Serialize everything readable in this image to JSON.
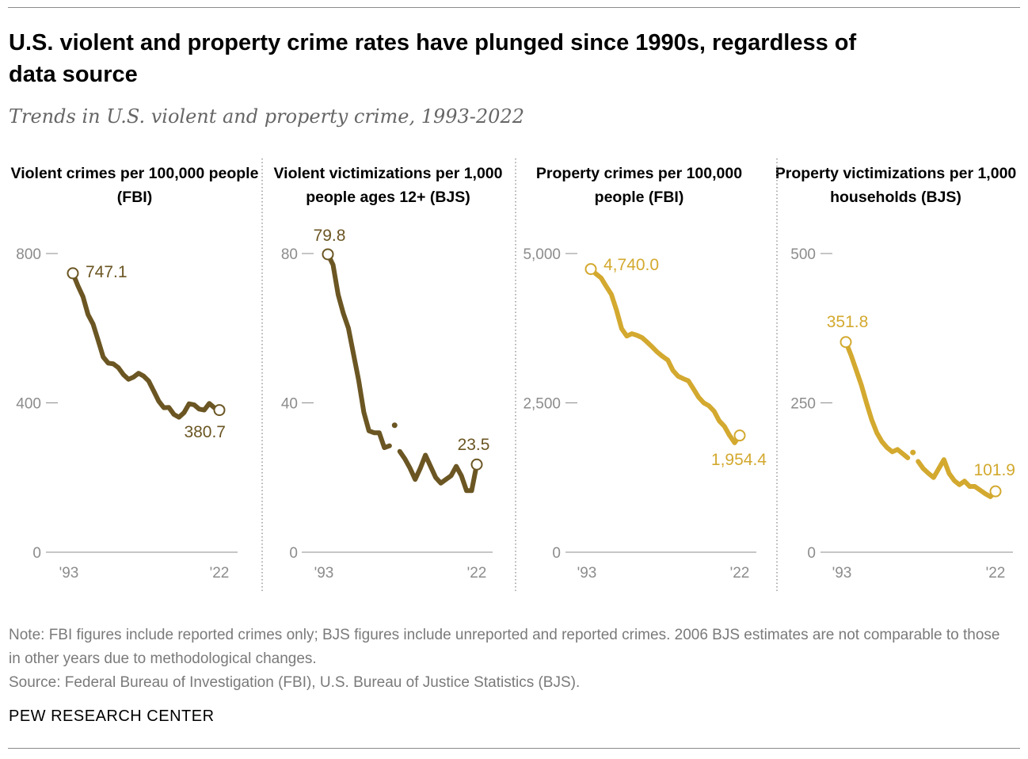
{
  "title": "U.S. violent and property crime rates have plunged since 1990s, regardless of data source",
  "subtitle": "Trends in U.S. violent and property crime, 1993-2022",
  "note": "Note: FBI figures include reported crimes only; BJS figures include unreported and reported crimes. 2006 BJS estimates are not comparable to those in other years due to methodological changes.",
  "source": "Source: Federal Bureau of Investigation (FBI), U.S. Bureau of Justice Statistics (BJS).",
  "logo": "PEW RESEARCH CENTER",
  "colors": {
    "violent": "#6b5623",
    "property": "#d3a92f",
    "axis": "#8c8c8c"
  },
  "chart_data": [
    {
      "type": "line",
      "title": "Violent crimes per 100,000 people (FBI)",
      "color": "violent",
      "x": [
        1993,
        1994,
        1995,
        1996,
        1997,
        1998,
        1999,
        2000,
        2001,
        2002,
        2003,
        2004,
        2005,
        2006,
        2007,
        2008,
        2009,
        2010,
        2011,
        2012,
        2013,
        2014,
        2015,
        2016,
        2017,
        2018,
        2019,
        2020,
        2021,
        2022
      ],
      "values": [
        747.1,
        713.6,
        684.5,
        636.6,
        611.0,
        567.6,
        523.0,
        506.5,
        504.5,
        494.4,
        475.8,
        463.2,
        469.0,
        479.3,
        471.8,
        458.6,
        431.9,
        404.5,
        387.1,
        387.8,
        369.1,
        361.6,
        373.7,
        397.5,
        394.9,
        383.4,
        380.8,
        398.5,
        387.0,
        380.7
      ],
      "ylim": [
        0,
        800
      ],
      "yticks": [
        0,
        400,
        800
      ],
      "ytick_labels": [
        "0",
        "400",
        "800"
      ],
      "xtick_labels": [
        "'93",
        "'22"
      ],
      "labels": {
        "first": "747.1",
        "last": "380.7"
      }
    },
    {
      "type": "line",
      "title": "Violent victimizations per 1,000 people ages 12+ (BJS)",
      "color": "violent",
      "x": [
        1993,
        1994,
        1995,
        1996,
        1997,
        1998,
        1999,
        2000,
        2001,
        2002,
        2003,
        2004,
        2005,
        2006,
        2007,
        2008,
        2009,
        2010,
        2011,
        2012,
        2013,
        2014,
        2015,
        2016,
        2017,
        2018,
        2019,
        2020,
        2021,
        2022
      ],
      "values": [
        79.8,
        77.0,
        69.0,
        64.0,
        60.0,
        53.0,
        46.0,
        37.5,
        32.5,
        32.0,
        32.0,
        28.0,
        28.5,
        34.0,
        27.0,
        25.0,
        22.5,
        19.5,
        22.5,
        26.0,
        23.0,
        20.0,
        18.5,
        19.5,
        20.5,
        23.0,
        20.5,
        16.5,
        16.5,
        23.5
      ],
      "gap_year": 2006,
      "ylim": [
        0,
        80
      ],
      "yticks": [
        0,
        40,
        80
      ],
      "ytick_labels": [
        "0",
        "40",
        "80"
      ],
      "xtick_labels": [
        "'93",
        "'22"
      ],
      "labels": {
        "first": "79.8",
        "last": "23.5"
      }
    },
    {
      "type": "line",
      "title": "Property crimes per 100,000 people (FBI)",
      "color": "property",
      "x": [
        1993,
        1994,
        1995,
        1996,
        1997,
        1998,
        1999,
        2000,
        2001,
        2002,
        2003,
        2004,
        2005,
        2006,
        2007,
        2008,
        2009,
        2010,
        2011,
        2012,
        2013,
        2014,
        2015,
        2016,
        2017,
        2018,
        2019,
        2020,
        2021,
        2022
      ],
      "values": [
        4740.0,
        4660,
        4591,
        4451,
        4316,
        4052,
        3743,
        3618,
        3658,
        3631,
        3591,
        3514,
        3432,
        3346,
        3276,
        3215,
        3042,
        2946,
        2905,
        2869,
        2734,
        2594,
        2500,
        2451,
        2362,
        2200,
        2110,
        1958,
        1832,
        1954.4
      ],
      "ylim": [
        0,
        5000
      ],
      "yticks": [
        0,
        2500,
        5000
      ],
      "ytick_labels": [
        "0",
        "2,500",
        "5,000"
      ],
      "xtick_labels": [
        "'93",
        "'22"
      ],
      "labels": {
        "first": "4,740.0",
        "last": "1,954.4"
      }
    },
    {
      "type": "line",
      "title": "Property victimizations per 1,000 households (BJS)",
      "color": "property",
      "x": [
        1993,
        1994,
        1995,
        1996,
        1997,
        1998,
        1999,
        2000,
        2001,
        2002,
        2003,
        2004,
        2005,
        2006,
        2007,
        2008,
        2009,
        2010,
        2011,
        2012,
        2013,
        2014,
        2015,
        2016,
        2017,
        2018,
        2019,
        2020,
        2021,
        2022
      ],
      "values": [
        351.8,
        330,
        305,
        280,
        250,
        222,
        200,
        185,
        175,
        168,
        172,
        165,
        158,
        167,
        152,
        140,
        132,
        125,
        140,
        155,
        132,
        120,
        113,
        119,
        110,
        110,
        104,
        98,
        93,
        101.9
      ],
      "gap_year": 2006,
      "ylim": [
        0,
        500
      ],
      "yticks": [
        0,
        250,
        500
      ],
      "ytick_labels": [
        "0",
        "250",
        "500"
      ],
      "xtick_labels": [
        "'93",
        "'22"
      ],
      "labels": {
        "first": "351.8",
        "last": "101.9"
      }
    }
  ]
}
